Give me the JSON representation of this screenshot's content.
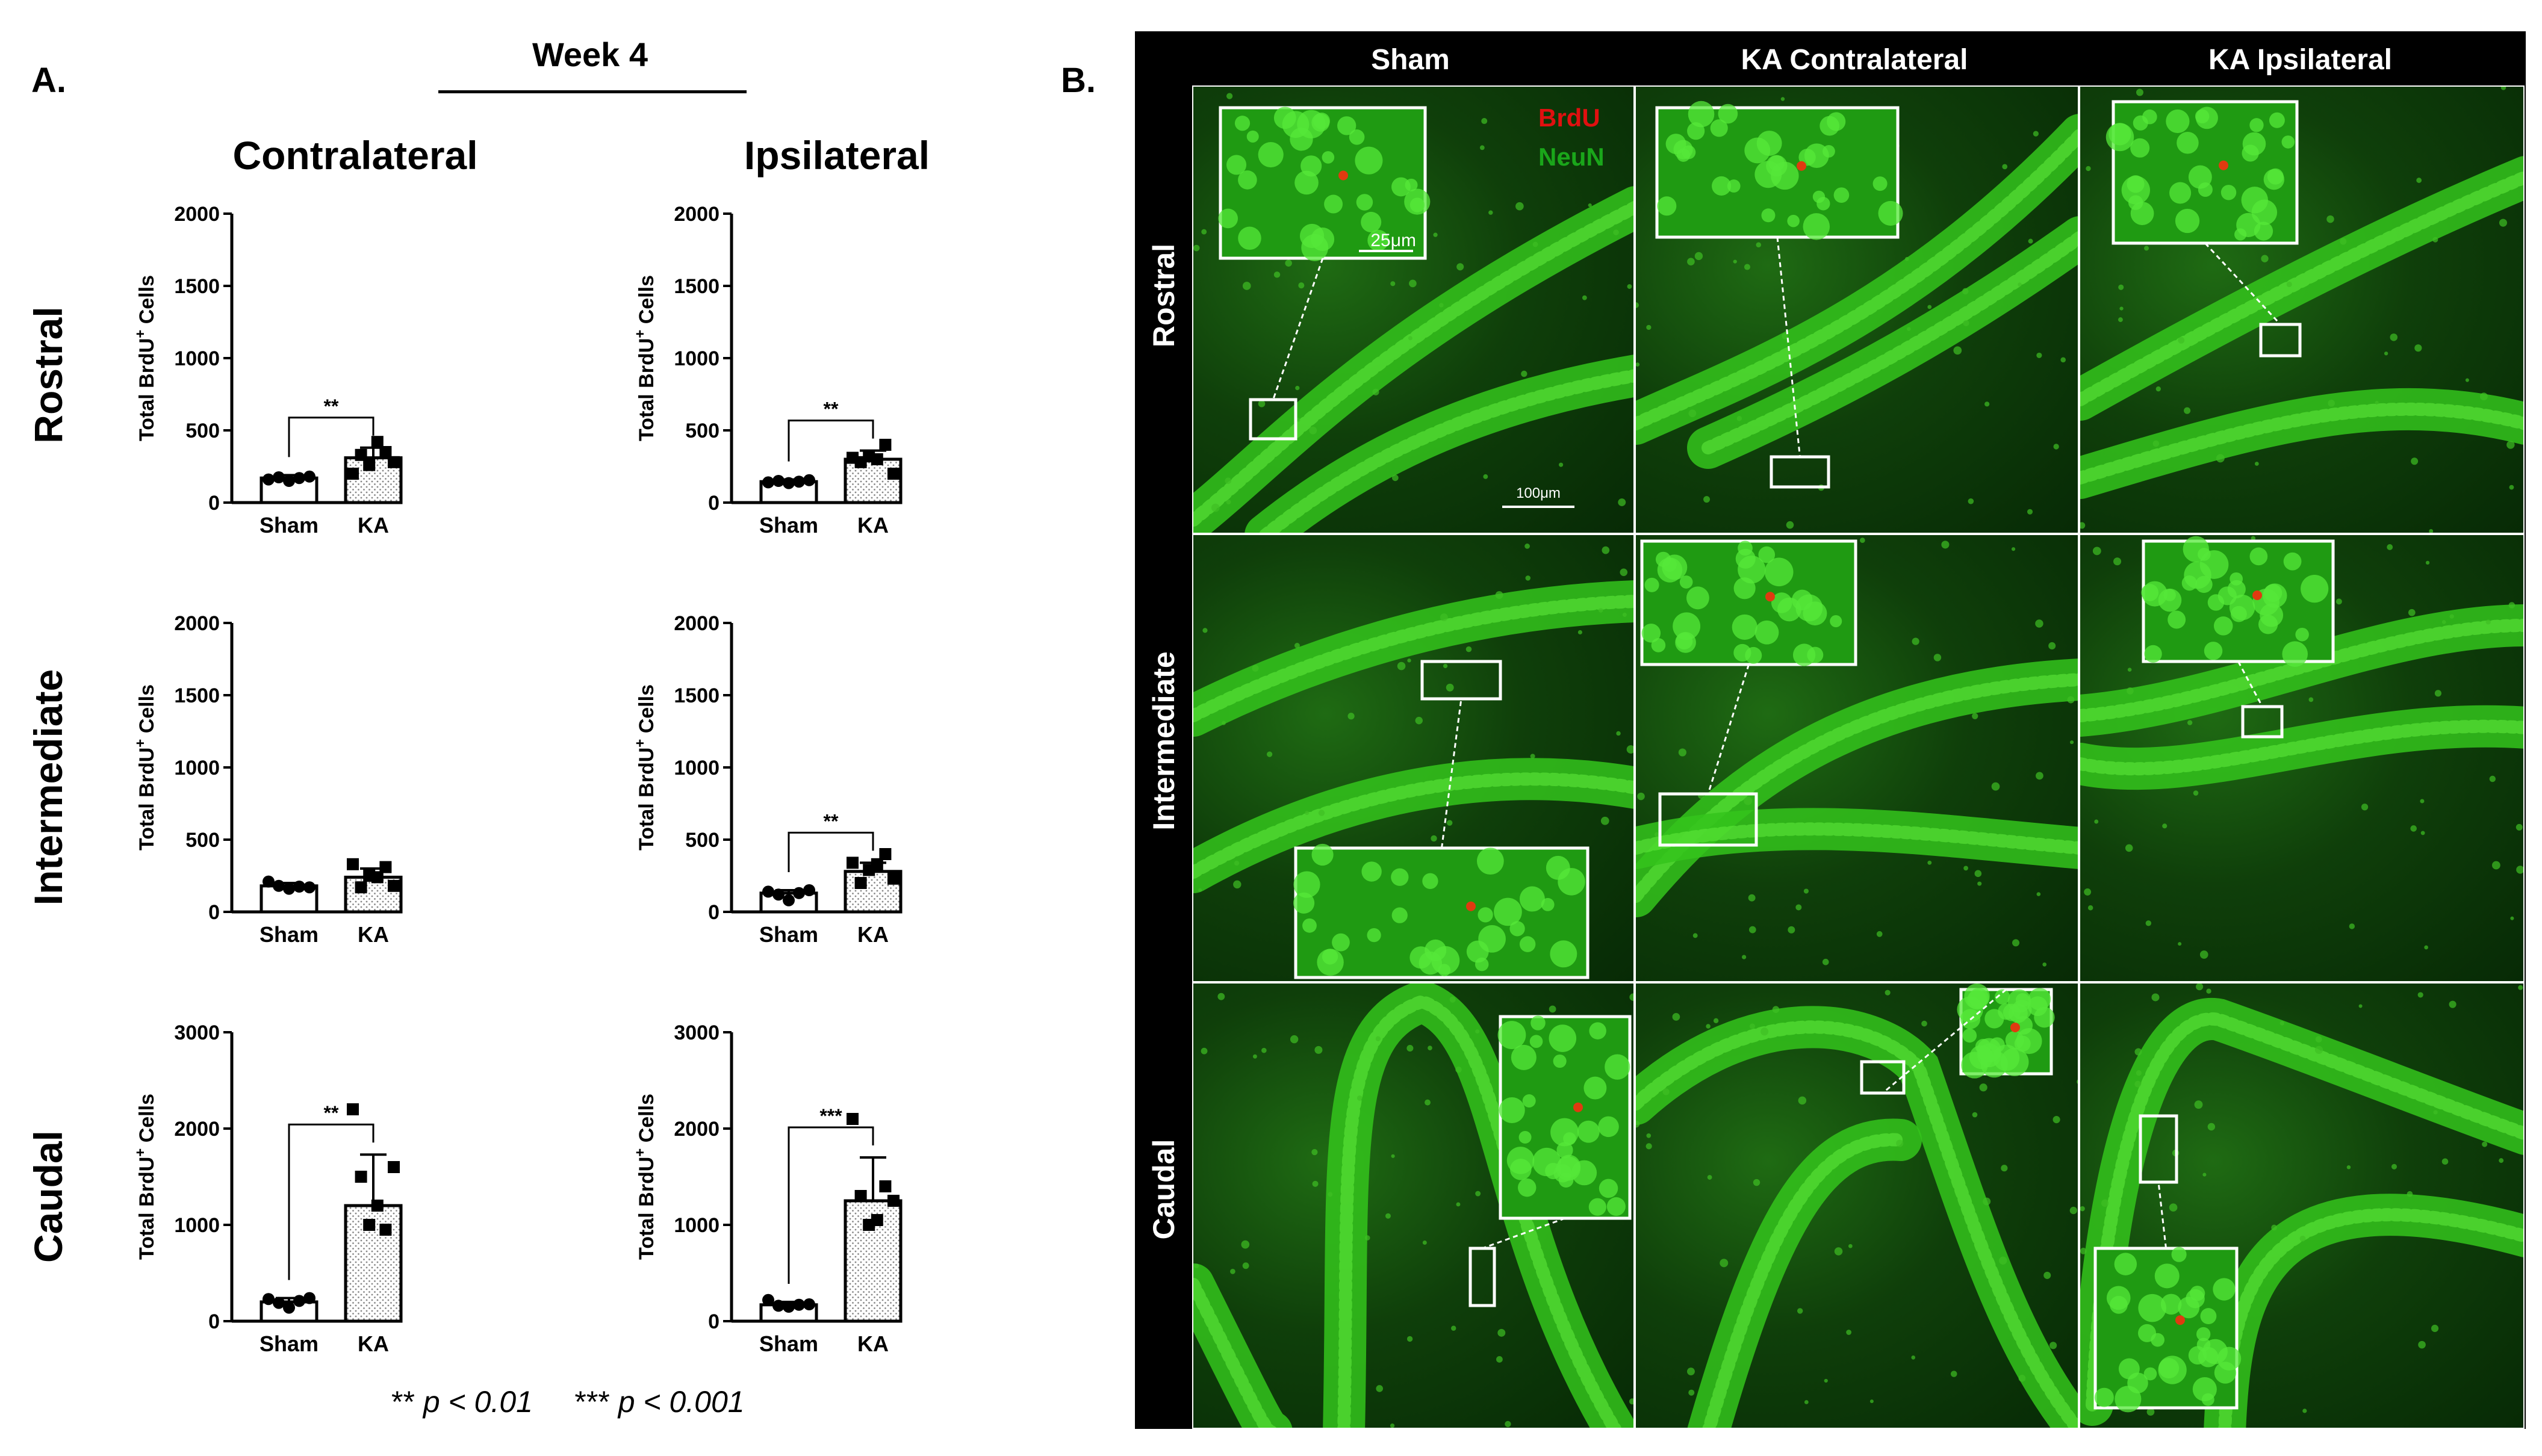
{
  "panel_labels": {
    "a": "A.",
    "b": "B."
  },
  "week_title": "Week 4",
  "columns": [
    "Contralateral",
    "Ipsilateral"
  ],
  "rows": [
    "Rostral",
    "Intermediate",
    "Caudal"
  ],
  "footnote": {
    "p1_stars": "**",
    "p1_text": "p < 0.01",
    "p2_stars": "***",
    "p2_text": "p < 0.001"
  },
  "chart_data": [
    {
      "type": "bar",
      "region": "Rostral",
      "side": "Contralateral",
      "categories": [
        "Sham",
        "KA"
      ],
      "values": [
        170,
        310
      ],
      "errors": [
        20,
        70
      ],
      "points": [
        [
          160,
          175,
          150,
          170,
          180
        ],
        [
          200,
          330,
          260,
          420,
          350,
          280
        ]
      ],
      "ylabel": "Total BrdU+ Cells",
      "ylim": [
        0,
        2000
      ],
      "yticks": [
        0,
        500,
        1000,
        1500,
        2000
      ],
      "significance": "**"
    },
    {
      "type": "bar",
      "region": "Rostral",
      "side": "Ipsilateral",
      "categories": [
        "Sham",
        "KA"
      ],
      "values": [
        145,
        300
      ],
      "errors": [
        15,
        60
      ],
      "points": [
        [
          140,
          150,
          135,
          145,
          155
        ],
        [
          310,
          280,
          320,
          300,
          400,
          200
        ]
      ],
      "ylabel": "Total BrdU+ Cells",
      "ylim": [
        0,
        2000
      ],
      "yticks": [
        0,
        500,
        1000,
        1500,
        2000
      ],
      "significance": "**"
    },
    {
      "type": "bar",
      "region": "Intermediate",
      "side": "Contralateral",
      "categories": [
        "Sham",
        "KA"
      ],
      "values": [
        180,
        240
      ],
      "errors": [
        20,
        60
      ],
      "points": [
        [
          210,
          180,
          160,
          175,
          170
        ],
        [
          330,
          170,
          250,
          240,
          310,
          180
        ]
      ],
      "ylabel": "Total BrdU+ Cells",
      "ylim": [
        0,
        2000
      ],
      "yticks": [
        0,
        500,
        1000,
        1500,
        2000
      ],
      "significance": ""
    },
    {
      "type": "bar",
      "region": "Intermediate",
      "side": "Ipsilateral",
      "categories": [
        "Sham",
        "KA"
      ],
      "values": [
        130,
        280
      ],
      "errors": [
        20,
        60
      ],
      "points": [
        [
          140,
          120,
          80,
          130,
          150
        ],
        [
          340,
          200,
          290,
          330,
          400,
          230
        ]
      ],
      "ylabel": "Total BrdU+ Cells",
      "ylim": [
        0,
        2000
      ],
      "yticks": [
        0,
        500,
        1000,
        1500,
        2000
      ],
      "significance": "**"
    },
    {
      "type": "bar",
      "region": "Caudal",
      "side": "Contralateral",
      "categories": [
        "Sham",
        "KA"
      ],
      "values": [
        200,
        1200
      ],
      "errors": [
        40,
        530
      ],
      "points": [
        [
          230,
          190,
          140,
          210,
          240
        ],
        [
          2200,
          1500,
          1000,
          1200,
          950,
          1600
        ]
      ],
      "ylabel": "Total BrdU+ Cells",
      "ylim": [
        0,
        3000
      ],
      "yticks": [
        0,
        1000,
        2000,
        3000
      ],
      "significance": "**"
    },
    {
      "type": "bar",
      "region": "Caudal",
      "side": "Ipsilateral",
      "categories": [
        "Sham",
        "KA"
      ],
      "values": [
        170,
        1250
      ],
      "errors": [
        30,
        450
      ],
      "points": [
        [
          220,
          160,
          150,
          170,
          175
        ],
        [
          2100,
          1300,
          1000,
          1050,
          1400,
          1250
        ]
      ],
      "ylabel": "Total BrdU+ Cells",
      "ylim": [
        0,
        3000
      ],
      "yticks": [
        0,
        1000,
        2000,
        3000
      ],
      "significance": "***"
    }
  ],
  "micrographs": {
    "columns": [
      "Sham",
      "KA Contralateral",
      "KA Ipsilateral"
    ],
    "rows": [
      "Rostral",
      "Intermediate",
      "Caudal"
    ],
    "legend": {
      "brdu": "BrdU",
      "neun": "NeuN"
    },
    "scale_inset": "25μm",
    "scale_main": "100μm",
    "colors": {
      "neun": "#34c41c",
      "brdu": "#e03a10",
      "background": "#0c3a08"
    }
  }
}
